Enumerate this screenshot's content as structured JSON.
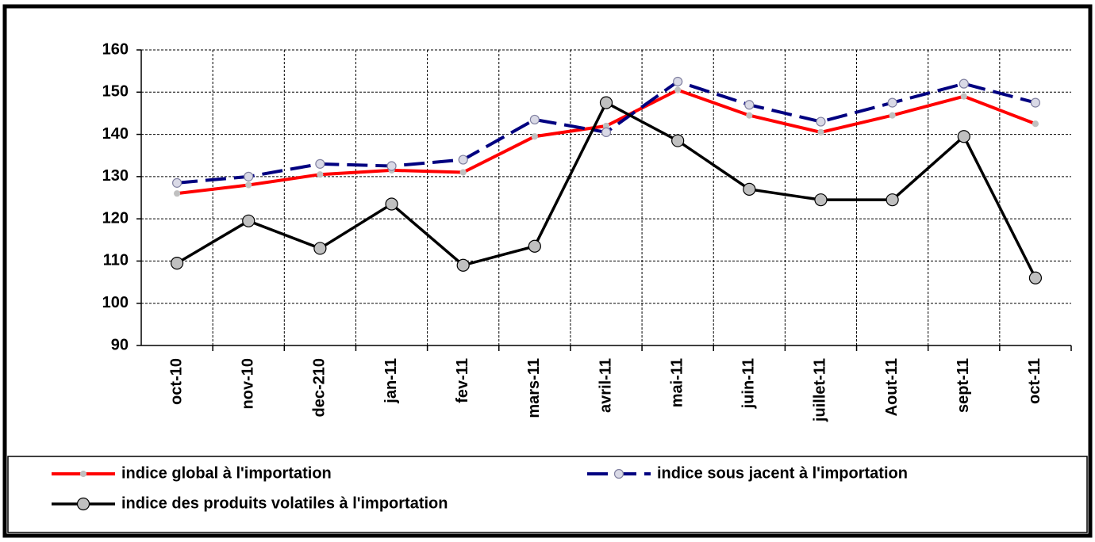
{
  "chart_data": {
    "type": "line",
    "categories": [
      "oct-10",
      "nov-10",
      "dec-210",
      "jan-11",
      "fev-11",
      "mars-11",
      "avril-11",
      "mai-11",
      "juin-11",
      "juillet-11",
      "Aout-11",
      "sept-11",
      "oct-11"
    ],
    "series": [
      {
        "name": "indice global à l'importation",
        "color": "#ff0000",
        "linestyle": "solid",
        "values": [
          126,
          128,
          130.5,
          131.5,
          131,
          139.5,
          142,
          150.5,
          144.5,
          140.5,
          144.5,
          149,
          142.5
        ]
      },
      {
        "name": "indice sous jacent à l'importation",
        "color": "#000080",
        "linestyle": "dashed",
        "values": [
          128.5,
          130,
          133,
          132.5,
          134,
          143.5,
          140.5,
          152.5,
          147,
          143,
          147.5,
          152,
          147.5
        ]
      },
      {
        "name": "indice des produits volatiles à l'importation",
        "color": "#000000",
        "linestyle": "solid",
        "values": [
          109.5,
          119.5,
          113,
          123.5,
          109,
          113.5,
          147.5,
          138.5,
          127,
          124.5,
          124.5,
          139.5,
          106
        ]
      }
    ],
    "ylim": [
      90,
      160
    ],
    "yticks": [
      90,
      100,
      110,
      120,
      130,
      140,
      150,
      160
    ],
    "grid": true,
    "legend": "bottom"
  }
}
